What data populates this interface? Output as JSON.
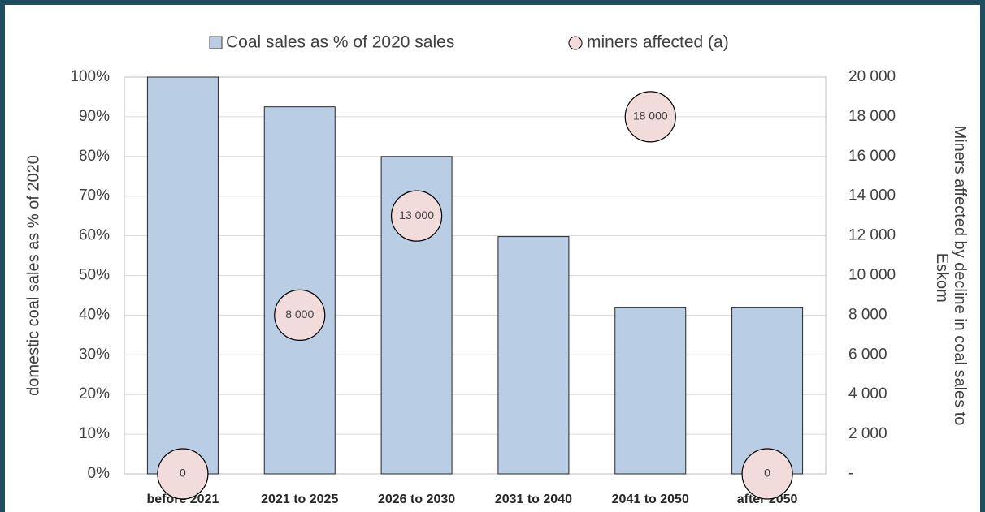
{
  "chart_data": {
    "type": "bar_bubble",
    "categories": [
      "before 2021",
      "2021 to 2025",
      "2026 to 2030",
      "2031 to 2040",
      "2041 to 2050",
      "after 2050"
    ],
    "series": [
      {
        "name": "Coal sales as % of 2020 sales",
        "color": "#b9cde5",
        "values": [
          100,
          92.5,
          80,
          59.8,
          42,
          42
        ]
      },
      {
        "name": "miners affected (a)",
        "color": "#f2dcdb",
        "axis": "y2",
        "values": [
          0,
          8000,
          13000,
          null,
          18000,
          0
        ],
        "value_labels": [
          "0",
          "8 000",
          "13 000",
          null,
          "18 000",
          "0"
        ]
      }
    ],
    "ylabel": "domestic coal sales as % of 2020",
    "y2label": "Miners affected by decline in coal sales to Eskom",
    "ylim": [
      0,
      100
    ],
    "yticks": [
      {
        "value": 0,
        "label": "0%"
      },
      {
        "value": 10,
        "label": "10%"
      },
      {
        "value": 20,
        "label": "20%"
      },
      {
        "value": 30,
        "label": "30%"
      },
      {
        "value": 40,
        "label": "40%"
      },
      {
        "value": 50,
        "label": "50%"
      },
      {
        "value": 60,
        "label": "60%"
      },
      {
        "value": 70,
        "label": "70%"
      },
      {
        "value": 80,
        "label": "80%"
      },
      {
        "value": 90,
        "label": "90%"
      },
      {
        "value": 100,
        "label": "100%"
      }
    ],
    "y2lim": [
      0,
      20000
    ],
    "y2ticks": [
      {
        "value": 0,
        "label": "-"
      },
      {
        "value": 2000,
        "label": "2 000"
      },
      {
        "value": 4000,
        "label": "4 000"
      },
      {
        "value": 6000,
        "label": "6 000"
      },
      {
        "value": 8000,
        "label": "8 000"
      },
      {
        "value": 10000,
        "label": "10 000"
      },
      {
        "value": 12000,
        "label": "12 000"
      },
      {
        "value": 14000,
        "label": "14 000"
      },
      {
        "value": 16000,
        "label": "16 000"
      },
      {
        "value": 18000,
        "label": "18 000"
      },
      {
        "value": 20000,
        "label": "20 000"
      }
    ],
    "grid": true,
    "legend": "top"
  }
}
